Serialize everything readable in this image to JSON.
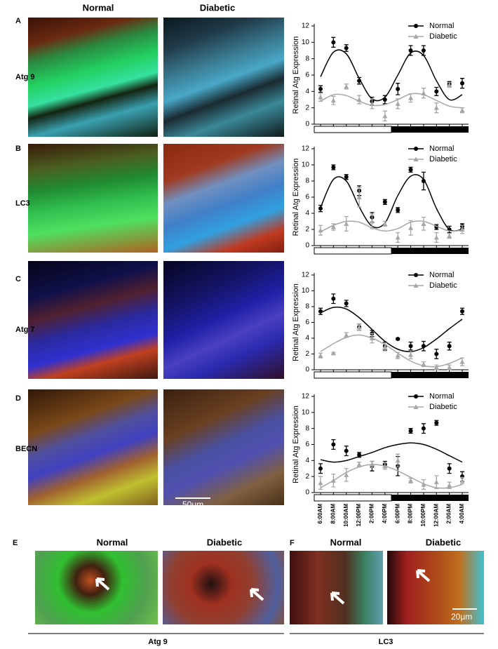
{
  "figure": {
    "column_headers": [
      "Normal",
      "Diabetic"
    ],
    "rows": [
      {
        "letter": "A",
        "label": "Atg 9"
      },
      {
        "letter": "B",
        "label": "LC3"
      },
      {
        "letter": "C",
        "label": "Atg 7"
      },
      {
        "letter": "D",
        "label": "BECN"
      }
    ],
    "scale_bar_top": "50μm",
    "lower": [
      {
        "letter": "E",
        "headers": [
          "Normal",
          "Diabetic"
        ],
        "label": "Atg 9"
      },
      {
        "letter": "F",
        "headers": [
          "Normal",
          "Diabetic"
        ],
        "label": "LC3"
      }
    ],
    "scale_bar_bottom": "20μm"
  },
  "chart_data": [
    {
      "type": "line",
      "ylabel": "Retinal Atg Expression",
      "ylim": [
        0,
        12
      ],
      "yticks": [
        0,
        2,
        4,
        6,
        8,
        10,
        12
      ],
      "series": [
        {
          "name": "Normal",
          "color": "#000000",
          "marker": "circle",
          "values": [
            4.3,
            10,
            9.3,
            5.3,
            2.8,
            3,
            4.3,
            9,
            9,
            4,
            4.9,
            5
          ],
          "errors": [
            0.4,
            0.6,
            0.4,
            0.4,
            0.5,
            0.5,
            0.7,
            0.6,
            0.6,
            0.5,
            0.3,
            0.6
          ],
          "fit_values": [
            5.8,
            8.8,
            8.6,
            5.6,
            3.1,
            3.3,
            6,
            8.7,
            8.4,
            5.3,
            3,
            3.6
          ]
        },
        {
          "name": "Diabetic",
          "color": "#a6a6a6",
          "marker": "triangle",
          "values": [
            3.3,
            2.9,
            4.6,
            3,
            2.5,
            1,
            2.5,
            3.2,
            3.8,
            2,
            4.8,
            1.7
          ],
          "errors": [
            0.5,
            0.5,
            0.3,
            0.5,
            0.6,
            0.6,
            0.6,
            0.5,
            0.6,
            0.6,
            0.3,
            0.3
          ],
          "fit_values": [
            2.8,
            3.6,
            3.5,
            2.8,
            2.3,
            2.4,
            3,
            3.7,
            3.6,
            2.9,
            2.2,
            2
          ]
        }
      ]
    },
    {
      "type": "line",
      "ylabel": "Retinal Atg Expression",
      "ylim": [
        0,
        12
      ],
      "yticks": [
        0,
        2,
        4,
        6,
        8,
        10,
        12
      ],
      "series": [
        {
          "name": "Normal",
          "color": "#000000",
          "marker": "circle",
          "values": [
            4.6,
            9.7,
            8.5,
            6.8,
            3.5,
            5.4,
            4.4,
            9.4,
            8,
            2.3,
            2,
            2.4
          ],
          "errors": [
            0.4,
            0.3,
            0.3,
            0.6,
            0.6,
            0.3,
            0.3,
            0.3,
            1.1,
            0.3,
            0.4,
            0.3
          ],
          "fit_values": [
            4.7,
            8.2,
            8,
            4.8,
            2.4,
            2.8,
            6.2,
            8.6,
            8.2,
            4.6,
            2,
            2
          ]
        },
        {
          "name": "Diabetic",
          "color": "#a6a6a6",
          "marker": "triangle",
          "values": [
            1.9,
            2.3,
            2.7,
            6,
            3,
            2.7,
            1,
            2.2,
            2.7,
            1,
            1.2,
            2
          ],
          "errors": [
            0.6,
            0.4,
            0.9,
            1.2,
            0.9,
            0.3,
            0.6,
            0.9,
            0.8,
            0.6,
            0.3,
            0.5
          ],
          "fit_values": [
            1.7,
            2.5,
            3,
            2.9,
            2.2,
            1.8,
            2.1,
            2.9,
            3,
            2.4,
            1.8,
            1.9
          ]
        }
      ]
    },
    {
      "type": "line",
      "ylabel": "Retinal Atg Expression",
      "ylim": [
        0,
        12
      ],
      "yticks": [
        0,
        2,
        4,
        6,
        8,
        10,
        12
      ],
      "series": [
        {
          "name": "Normal",
          "color": "#000000",
          "marker": "circle",
          "values": [
            7.4,
            9,
            8.4,
            5.4,
            4.6,
            3,
            3.9,
            3,
            3,
            2,
            3,
            7.4
          ],
          "errors": [
            0.4,
            0.6,
            0.4,
            0.4,
            0.4,
            0.5,
            0.1,
            0.5,
            0.6,
            0.6,
            0.5,
            0.4
          ],
          "fit_values": [
            7.2,
            7.9,
            7.7,
            6.6,
            5.1,
            3.6,
            2.6,
            2.3,
            2.8,
            3.9,
            5.2,
            6.4
          ]
        },
        {
          "name": "Diabetic",
          "color": "#a6a6a6",
          "marker": "triangle",
          "values": [
            1.8,
            2.1,
            4.4,
            5.4,
            4,
            2.9,
            1.8,
            1.9,
            0.7,
            0.3,
            0.3,
            1
          ],
          "errors": [
            0.3,
            0.1,
            0.3,
            0.4,
            0.6,
            0.5,
            0.4,
            0.5,
            0.3,
            0.3,
            0.3,
            0.5
          ],
          "fit_values": [
            2.3,
            3.3,
            4.1,
            4.4,
            4,
            3.2,
            2.1,
            1.1,
            0.5,
            0.4,
            0.8,
            1.5
          ]
        }
      ]
    },
    {
      "type": "line",
      "ylabel": "Retinal Atg Expression",
      "ylim": [
        0,
        12
      ],
      "yticks": [
        0,
        2,
        4,
        6,
        8,
        10,
        12
      ],
      "categories": [
        "6:00AM",
        "8:00AM",
        "10:00AM",
        "12:00PM",
        "2:00PM",
        "4:00PM",
        "6:00PM",
        "8:00PM",
        "10:00PM",
        "12:00AM",
        "2:00AM",
        "4:00AM"
      ],
      "series": [
        {
          "name": "Normal",
          "color": "#000000",
          "marker": "circle",
          "values": [
            3,
            6,
            5.2,
            4.7,
            3.3,
            3.5,
            3.3,
            7.7,
            8,
            8.7,
            3,
            2
          ],
          "errors": [
            0.6,
            0.6,
            0.6,
            0.3,
            0.6,
            0.4,
            1.2,
            0.3,
            0.6,
            0.3,
            0.6,
            0.6
          ],
          "fit_values": [
            4.1,
            3.8,
            4,
            4.5,
            5,
            5.6,
            6,
            6.2,
            6,
            5.4,
            4.6,
            3.8
          ]
        },
        {
          "name": "Diabetic",
          "color": "#a6a6a6",
          "marker": "triangle",
          "values": [
            1.2,
            1.5,
            2.2,
            3.5,
            3.5,
            3.3,
            4,
            1.5,
            1,
            1.3,
            0.9,
            1.5
          ],
          "errors": [
            0.8,
            0.8,
            0.8,
            0.3,
            0.4,
            0.4,
            0.8,
            0.3,
            0.6,
            0.8,
            0.4,
            0.4
          ],
          "fit_values": [
            0.6,
            1.5,
            2.5,
            3.2,
            3.5,
            3.3,
            2.7,
            1.9,
            1.1,
            0.6,
            0.6,
            1
          ]
        }
      ]
    }
  ]
}
